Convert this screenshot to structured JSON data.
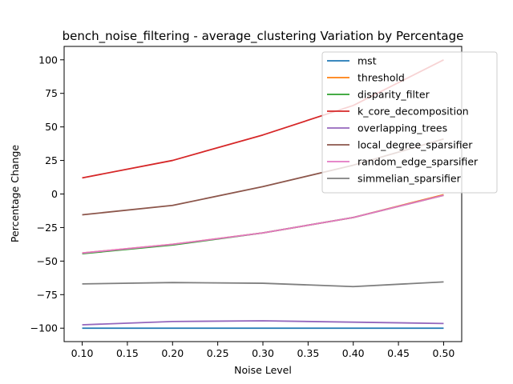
{
  "chart_data": {
    "type": "line",
    "title": "bench_noise_filtering - average_clustering Variation by Percentage",
    "xlabel": "Noise Level",
    "ylabel": "Percentage Change",
    "x": [
      0.1,
      0.2,
      0.3,
      0.4,
      0.5
    ],
    "xlim": [
      0.08,
      0.52
    ],
    "ylim": [
      -110,
      110
    ],
    "x_ticks": [
      0.1,
      0.15,
      0.2,
      0.25,
      0.3,
      0.35,
      0.4,
      0.45,
      0.5
    ],
    "x_tick_labels": [
      "0.10",
      "0.15",
      "0.20",
      "0.25",
      "0.30",
      "0.35",
      "0.40",
      "0.45",
      "0.50"
    ],
    "y_ticks": [
      -100,
      -75,
      -50,
      -25,
      0,
      25,
      50,
      75,
      100
    ],
    "y_tick_labels": [
      "−100",
      "−75",
      "−50",
      "−25",
      "0",
      "25",
      "50",
      "75",
      "100"
    ],
    "grid": false,
    "legend_position": "top-right",
    "series": [
      {
        "name": "mst",
        "color": "#1f77b4",
        "values": [
          -100,
          -100,
          -100,
          -100,
          -100
        ]
      },
      {
        "name": "threshold",
        "color": "#ff7f0e",
        "values": [
          -44,
          -37.5,
          -29,
          -17.5,
          -0.5
        ]
      },
      {
        "name": "disparity_filter",
        "color": "#2ca02c",
        "values": [
          -44.5,
          -38,
          -29,
          -17.5,
          -1
        ]
      },
      {
        "name": "k_core_decomposition",
        "color": "#d62728",
        "values": [
          12,
          25,
          44,
          66,
          100
        ]
      },
      {
        "name": "overlapping_trees",
        "color": "#9467bd",
        "values": [
          -97.5,
          -95,
          -94.5,
          -95.5,
          -96.5
        ]
      },
      {
        "name": "local_degree_sparsifier",
        "color": "#8c564b",
        "values": [
          -15.5,
          -8.5,
          5.5,
          21.5,
          41
        ]
      },
      {
        "name": "random_edge_sparsifier",
        "color": "#e377c2",
        "values": [
          -44,
          -37.5,
          -29,
          -17.5,
          -1
        ]
      },
      {
        "name": "simmelian_sparsifier",
        "color": "#7f7f7f",
        "values": [
          -67,
          -66,
          -66.5,
          -69,
          -65.5
        ]
      }
    ]
  }
}
